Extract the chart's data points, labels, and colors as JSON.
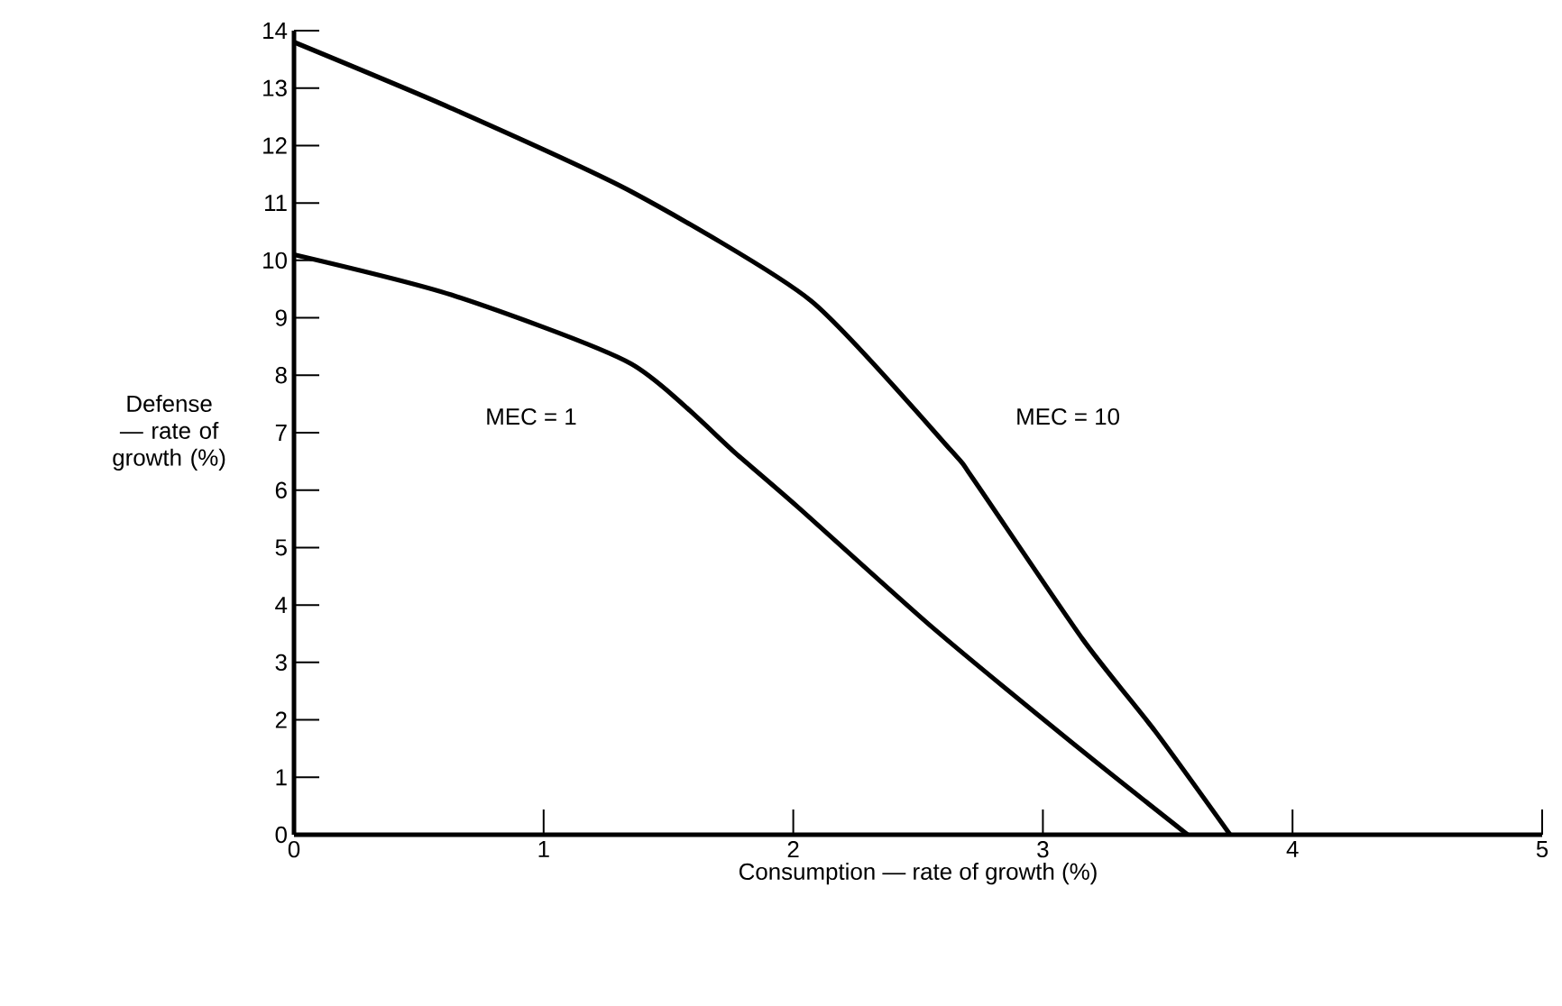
{
  "chart_data": {
    "type": "line",
    "xlabel": "Consumption — rate of growth (%)",
    "ylabel": "Defense — rate of growth (%)",
    "xlim": [
      0,
      5
    ],
    "ylim": [
      0,
      14
    ],
    "xticks": [
      0,
      1,
      2,
      3,
      4,
      5
    ],
    "yticks": [
      0,
      1,
      2,
      3,
      4,
      5,
      6,
      7,
      8,
      9,
      10,
      11,
      12,
      13,
      14
    ],
    "grid": false,
    "marker": "none",
    "line_style": "solid",
    "series": [
      {
        "color": "#000000",
        "x": [
          0,
          0.63,
          1.35,
          1.78,
          2.02,
          2.56,
          3.16,
          3.58
        ],
        "values": [
          10.1,
          9.4,
          8.2,
          6.6,
          5.7,
          3.6,
          1.45,
          0
        ]
      },
      {
        "color": "#000000",
        "x": [
          0,
          0.63,
          1.35,
          2.07,
          2.63,
          2.72,
          3.16,
          3.45,
          3.75
        ],
        "values": [
          13.8,
          12.65,
          11.2,
          9.3,
          6.7,
          6.2,
          3.4,
          1.8,
          0
        ]
      }
    ],
    "annotations": [
      "MEC = 1",
      "MEC = 10"
    ]
  }
}
